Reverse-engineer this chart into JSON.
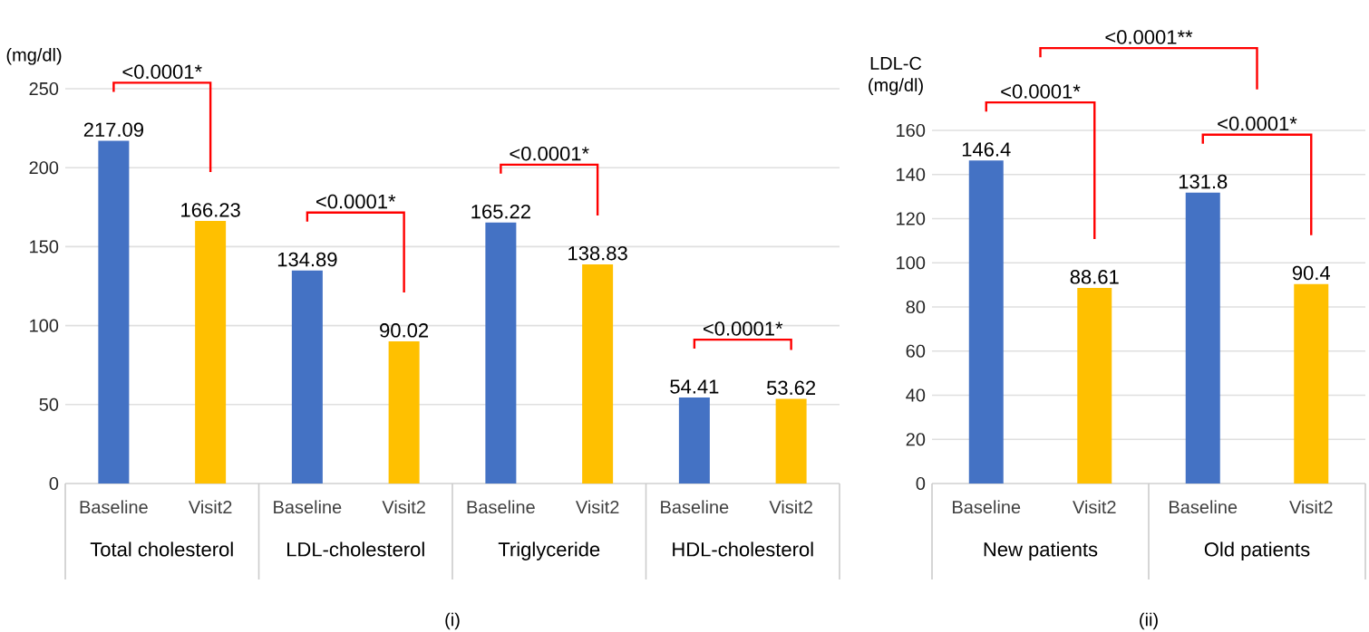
{
  "chart_data": [
    {
      "type": "bar",
      "title": "(i)",
      "ylabel": "(mg/dl)",
      "categories": [
        "Total cholesterol",
        "LDL-cholesterol",
        "Triglyceride",
        "HDL-cholesterol"
      ],
      "series": [
        {
          "name": "Baseline",
          "color": "#4472c4",
          "values": [
            217.09,
            134.89,
            165.22,
            54.41
          ]
        },
        {
          "name": "Visit2",
          "color": "#ffc000",
          "values": [
            166.23,
            90.02,
            138.83,
            53.62
          ]
        }
      ],
      "ylim": [
        0,
        250
      ],
      "yticks": [
        0,
        50,
        100,
        150,
        200,
        250
      ],
      "grid": "y",
      "data_labels": true,
      "annotations": [
        "<0.0001*",
        "<0.0001*",
        "<0.0001*",
        "<0.0001*"
      ]
    },
    {
      "type": "bar",
      "title": "(ii)",
      "ylabel": "LDL-C (mg/dl)",
      "categories": [
        "New patients",
        "Old patients"
      ],
      "series": [
        {
          "name": "Baseline",
          "color": "#4472c4",
          "values": [
            146.4,
            131.8
          ]
        },
        {
          "name": "Visit2",
          "color": "#ffc000",
          "values": [
            88.61,
            90.4
          ]
        }
      ],
      "ylim": [
        0,
        160
      ],
      "yticks": [
        0,
        20,
        40,
        60,
        80,
        100,
        120,
        140,
        160
      ],
      "grid": "y",
      "data_labels": true,
      "annotations": [
        "<0.0001*",
        "<0.0001*",
        "<0.0001**"
      ]
    }
  ]
}
